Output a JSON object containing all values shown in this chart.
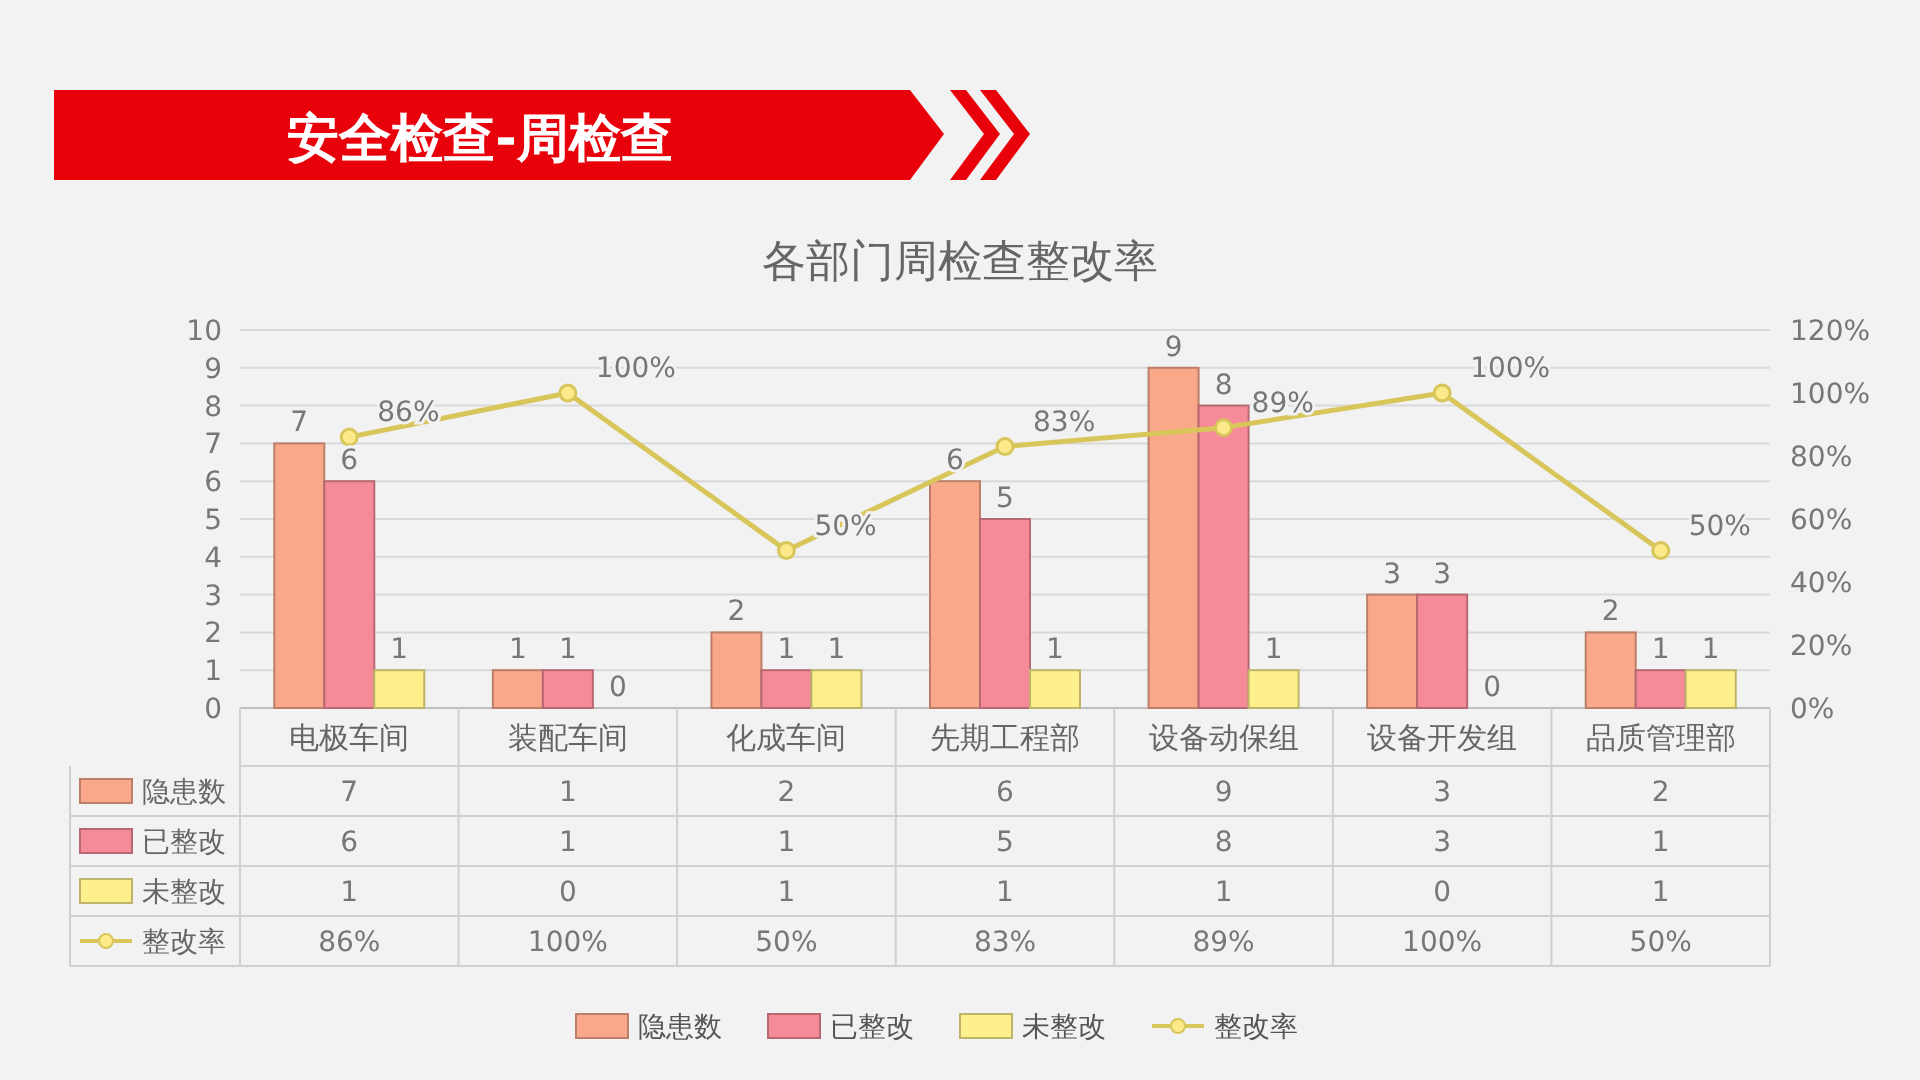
{
  "chart_data": {
    "type": "bar",
    "title": "各部门周检查整改率",
    "subtitle": "安全检查-周检查",
    "categories": [
      "电极车间",
      "装配车间",
      "化成车间",
      "先期工程部",
      "设备动保组",
      "设备开发组",
      "品质管理部"
    ],
    "series": [
      {
        "name": "隐患数",
        "color": "#f9a88a",
        "values": [
          7,
          1,
          2,
          6,
          9,
          3,
          2
        ],
        "value_labels": [
          "7",
          "1",
          "2",
          "6",
          "9",
          "3",
          "2"
        ]
      },
      {
        "name": "已整改",
        "color": "#f58a98",
        "values": [
          6,
          1,
          1,
          5,
          8,
          3,
          1
        ],
        "value_labels": [
          "6",
          "1",
          "1",
          "5",
          "8",
          "3",
          "1"
        ]
      },
      {
        "name": "未整改",
        "color": "#fcef8c",
        "values": [
          1,
          0,
          1,
          1,
          1,
          0,
          1
        ],
        "value_labels": [
          "1",
          "0",
          "1",
          "1",
          "1",
          "0",
          "1"
        ]
      },
      {
        "name": "整改率",
        "type": "line",
        "axis": "y2",
        "color": "#d8c65a",
        "marker": "circle",
        "values": [
          86,
          100,
          50,
          83,
          89,
          100,
          50
        ],
        "value_labels": [
          "86%",
          "100%",
          "50%",
          "83%",
          "89%",
          "100%",
          "50%"
        ]
      }
    ],
    "ylim": [
      0,
      10
    ],
    "yticks": [
      0,
      1,
      2,
      3,
      4,
      5,
      6,
      7,
      8,
      9,
      10
    ],
    "y2lim": [
      0,
      120
    ],
    "y2ticks": [
      {
        "value": 0,
        "label": "0%"
      },
      {
        "value": 20,
        "label": "20%"
      },
      {
        "value": 40,
        "label": "40%"
      },
      {
        "value": 60,
        "label": "60%"
      },
      {
        "value": 80,
        "label": "80%"
      },
      {
        "value": 100,
        "label": "100%"
      },
      {
        "value": 120,
        "label": "120%"
      }
    ],
    "grid": "y",
    "data_labels": true,
    "legend": "bottom"
  }
}
